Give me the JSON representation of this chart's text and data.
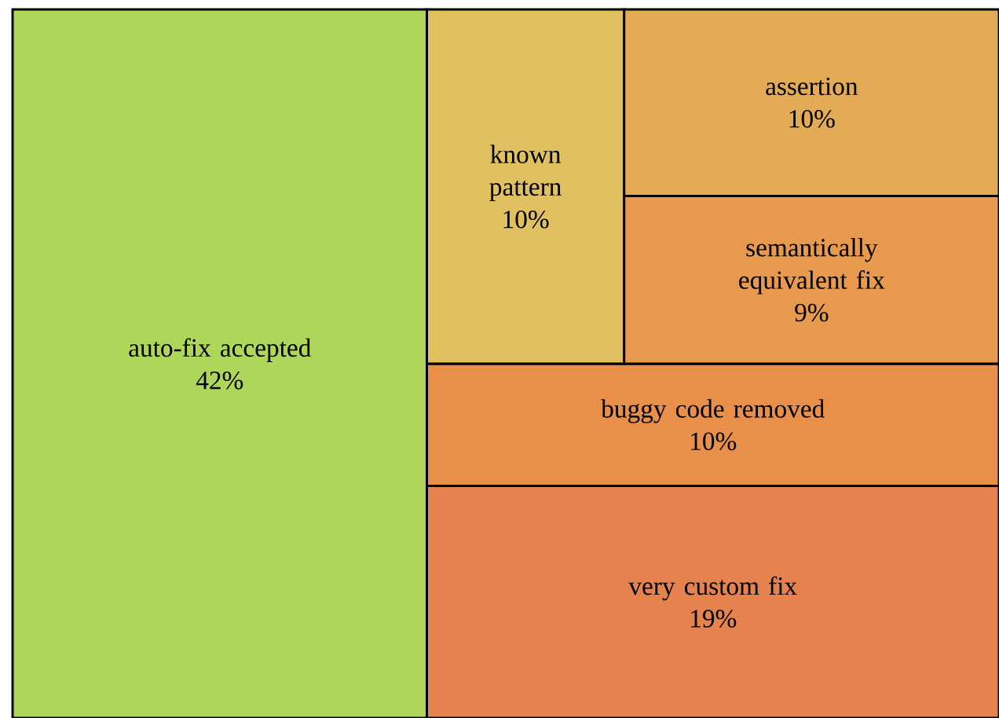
{
  "chart_data": {
    "type": "other",
    "categories": [
      "auto-fix accepted",
      "very custom fix",
      "buggy code removed",
      "known pattern",
      "semantically equivalent fix",
      "assertion"
    ],
    "values": [
      42,
      19,
      10,
      10,
      9,
      10
    ],
    "value_labels": [
      "42%",
      "19%",
      "10%",
      "10%",
      "9%",
      "10%"
    ],
    "colors": [
      "#aed65a",
      "#e6824e",
      "#e88f4a",
      "#e0c060",
      "#e79a4e",
      "#e3ab55"
    ]
  }
}
